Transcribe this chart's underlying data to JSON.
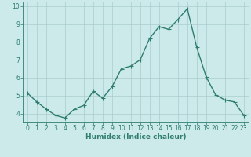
{
  "xlabel": "Humidex (Indice chaleur)",
  "x": [
    0,
    1,
    2,
    3,
    4,
    5,
    6,
    7,
    8,
    9,
    10,
    11,
    12,
    13,
    14,
    15,
    16,
    17,
    18,
    19,
    20,
    21,
    22,
    23
  ],
  "y": [
    5.15,
    4.65,
    4.25,
    3.9,
    3.75,
    4.25,
    4.45,
    5.25,
    4.85,
    5.5,
    6.5,
    6.65,
    7.0,
    8.2,
    8.85,
    8.7,
    9.25,
    9.85,
    7.7,
    6.05,
    5.05,
    4.75,
    4.65,
    3.9
  ],
  "line_color": "#2e7d6e",
  "marker": "D",
  "marker_size": 2.0,
  "bg_color": "#cceaea",
  "grid_color": "#aacccc",
  "axis_color": "#2e7d6e",
  "tick_color": "#2e7d6e",
  "label_color": "#2e7d6e",
  "ylim": [
    3.5,
    10.25
  ],
  "yticks": [
    4,
    5,
    6,
    7,
    8,
    9,
    10
  ],
  "xlim": [
    -0.5,
    23.5
  ],
  "xticks": [
    0,
    1,
    2,
    3,
    4,
    5,
    6,
    7,
    8,
    9,
    10,
    11,
    12,
    13,
    14,
    15,
    16,
    17,
    18,
    19,
    20,
    21,
    22,
    23
  ],
  "xlabel_fontsize": 6.5,
  "tick_fontsize": 5.5,
  "linewidth": 1.0
}
